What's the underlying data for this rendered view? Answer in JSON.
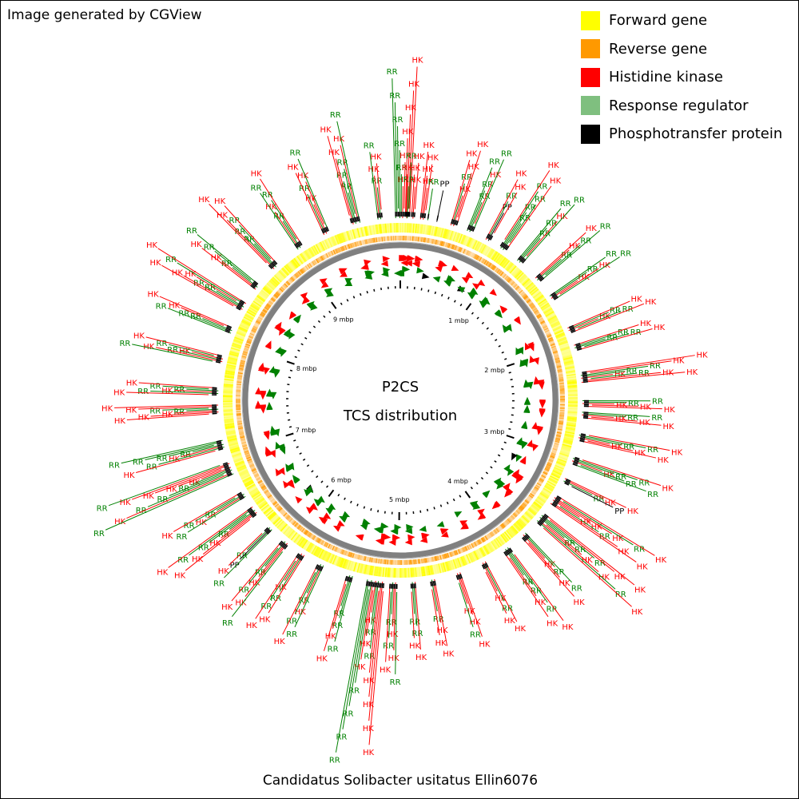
{
  "credit": "Image generated by CGView",
  "legend": [
    {
      "label": "Forward gene",
      "color": "#ffff00"
    },
    {
      "label": "Reverse gene",
      "color": "#ff9900"
    },
    {
      "label": "Histidine kinase",
      "color": "#ff0000"
    },
    {
      "label": "Response regulator",
      "color": "#7fbf7f"
    },
    {
      "label": "Phosphotransfer protein",
      "color": "#000000"
    }
  ],
  "center": {
    "line1": "P2CS",
    "line2": "TCS distribution"
  },
  "scale_labels": [
    "1 mbp",
    "2 mbp",
    "3 mbp",
    "4 mbp",
    "5 mbp",
    "6 mbp",
    "7 mbp",
    "8 mbp",
    "9 mbp"
  ],
  "caption": "Candidatus Solibacter usitatus Ellin6076",
  "feature_codes": {
    "HK": "HK",
    "RR": "RR",
    "PP": "PP"
  },
  "colors": {
    "histidine_kinase": "#ff0000",
    "response_regulator": "#008000",
    "phosphotransfer": "#000000",
    "forward_gene": "#ffff00",
    "reverse_gene": "#ff9900",
    "backbone": "#808080"
  },
  "genome_length_mbp": 9.97,
  "labeled_features": [
    {
      "pos": 0.02,
      "labels": [
        "HK",
        "RR",
        "HK",
        "RR",
        "HK",
        "RR",
        "HK",
        "RR",
        "HK",
        "RR",
        "HK"
      ]
    },
    {
      "pos": 0.06,
      "labels": [
        "RR",
        "HK",
        "RR"
      ]
    },
    {
      "pos": 0.11,
      "labels": [
        "HK",
        "HK",
        "HK"
      ]
    },
    {
      "pos": 0.2,
      "labels": [
        "HK",
        "HK",
        "HK",
        "HK"
      ]
    },
    {
      "pos": 0.24,
      "labels": [
        "RR"
      ]
    },
    {
      "pos": 0.32,
      "labels": [
        "PP"
      ]
    },
    {
      "pos": 0.47,
      "labels": [
        "HK",
        "RR",
        "HK",
        "HK",
        "HK"
      ]
    },
    {
      "pos": 0.62,
      "labels": [
        "RR",
        "RR",
        "HK",
        "RR",
        "RR"
      ]
    },
    {
      "pos": 0.8,
      "labels": [
        "PP",
        "RR",
        "HK",
        "HK"
      ]
    },
    {
      "pos": 0.95,
      "labels": [
        "RR",
        "RR",
        "RR",
        "RR",
        "HK",
        "HK"
      ]
    },
    {
      "pos": 1.13,
      "labels": [
        "RR",
        "RR",
        "HK",
        "RR",
        "RR"
      ]
    },
    {
      "pos": 1.35,
      "labels": [
        "RR",
        "HK",
        "RR",
        "HK",
        "RR"
      ]
    },
    {
      "pos": 1.55,
      "labels": [
        "HK",
        "RR",
        "HK",
        "RR",
        "RR"
      ]
    },
    {
      "pos": 1.87,
      "labels": [
        "HK",
        "RR",
        "RR",
        "HK",
        "HK"
      ]
    },
    {
      "pos": 2.03,
      "labels": [
        "RR",
        "RR",
        "RR",
        "HK",
        "HK"
      ]
    },
    {
      "pos": 2.3,
      "labels": [
        "HK",
        "RR",
        "RR",
        "RR",
        "HK",
        "HK",
        "HK",
        "HK"
      ]
    },
    {
      "pos": 2.52,
      "labels": [
        "HK",
        "RR",
        "HK",
        "RR",
        "HK"
      ]
    },
    {
      "pos": 2.62,
      "labels": [
        "HK",
        "RR",
        "HK",
        "RR",
        "HK"
      ]
    },
    {
      "pos": 2.82,
      "labels": [
        "HK",
        "RR",
        "HK",
        "RR",
        "HK",
        "HK"
      ]
    },
    {
      "pos": 3.03,
      "labels": [
        "HK",
        "RR",
        "RR",
        "RR",
        "RR",
        "HK"
      ]
    },
    {
      "pos": 3.22,
      "labels": [
        "RR",
        "HK",
        "PP",
        "HK"
      ]
    },
    {
      "pos": 3.41,
      "labels": [
        "HK",
        "HK",
        "RR",
        "HK",
        "HK",
        "RR",
        "HK",
        "HK"
      ]
    },
    {
      "pos": 3.6,
      "labels": [
        "RR",
        "RR",
        "HK",
        "RR",
        "HK",
        "HK",
        "RR",
        "HK",
        "HK"
      ]
    },
    {
      "pos": 3.81,
      "labels": [
        "HK",
        "RR",
        "HK",
        "RR",
        "HK"
      ]
    },
    {
      "pos": 4.01,
      "labels": [
        "RR",
        "RR",
        "HK",
        "RR",
        "HK",
        "HK"
      ]
    },
    {
      "pos": 4.24,
      "labels": [
        "HK",
        "RR",
        "HK",
        "HK"
      ]
    },
    {
      "pos": 4.48,
      "labels": [
        "HK",
        "HK",
        "RR",
        "HK"
      ]
    },
    {
      "pos": 4.71,
      "labels": [
        "RR",
        "HK",
        "HK",
        "HK"
      ]
    },
    {
      "pos": 4.88,
      "labels": [
        "RR",
        "RR",
        "HK",
        "HK"
      ]
    },
    {
      "pos": 5.05,
      "labels": [
        "RR",
        "HK",
        "RR",
        "HK",
        "HK",
        "RR"
      ]
    },
    {
      "pos": 5.2,
      "labels": [
        "HK",
        "RR",
        "HK",
        "RR",
        "HK",
        "HK",
        "RR",
        "HK",
        "RR",
        "HK",
        "RR",
        "HK",
        "RR"
      ]
    },
    {
      "pos": 5.43,
      "labels": [
        "RR",
        "RR",
        "HK",
        "RR",
        "HK"
      ]
    },
    {
      "pos": 5.7,
      "labels": [
        "RR",
        "HK",
        "RR",
        "RR",
        "HK"
      ]
    },
    {
      "pos": 5.89,
      "labels": [
        "HK",
        "RR",
        "RR",
        "HK",
        "HK"
      ]
    },
    {
      "pos": 6.07,
      "labels": [
        "RR",
        "HK",
        "RR",
        "HK",
        "HK",
        "RR"
      ]
    },
    {
      "pos": 6.25,
      "labels": [
        "RR",
        "PP",
        "HK",
        "RR"
      ]
    },
    {
      "pos": 6.45,
      "labels": [
        "RR",
        "HK",
        "RR",
        "HK",
        "RR",
        "HK",
        "HK"
      ]
    },
    {
      "pos": 6.62,
      "labels": [
        "RR",
        "HK",
        "RR",
        "RR",
        "HK"
      ]
    },
    {
      "pos": 6.88,
      "labels": [
        "HK",
        "RR",
        "HK",
        "RR",
        "HK",
        "RR",
        "HK",
        "HK",
        "RR",
        "RR"
      ]
    },
    {
      "pos": 7.09,
      "labels": [
        "RR",
        "HK",
        "RR",
        "RR",
        "RR",
        "HK",
        "RR"
      ]
    },
    {
      "pos": 7.4,
      "labels": [
        "RR",
        "HK",
        "RR",
        "HK",
        "HK",
        "HK",
        "HK"
      ]
    },
    {
      "pos": 7.56,
      "labels": [
        "RR",
        "HK",
        "RR",
        "RR",
        "HK",
        "HK"
      ]
    },
    {
      "pos": 7.84,
      "labels": [
        "HK",
        "RR",
        "RR",
        "HK",
        "HK",
        "RR"
      ]
    },
    {
      "pos": 8.1,
      "labels": [
        "RR",
        "RR",
        "HK",
        "RR",
        "HK"
      ]
    },
    {
      "pos": 8.33,
      "labels": [
        "RR",
        "RR",
        "HK",
        "HK",
        "RR",
        "HK",
        "HK"
      ]
    },
    {
      "pos": 8.54,
      "labels": [
        "RR",
        "HK",
        "RR",
        "HK",
        "RR"
      ]
    },
    {
      "pos": 8.78,
      "labels": [
        "RR",
        "RR",
        "RR",
        "HK",
        "HK",
        "HK"
      ]
    },
    {
      "pos": 9.05,
      "labels": [
        "RR",
        "HK",
        "RR",
        "RR",
        "HK"
      ]
    },
    {
      "pos": 9.31,
      "labels": [
        "HK",
        "RR",
        "HK",
        "HK",
        "RR"
      ]
    },
    {
      "pos": 9.58,
      "labels": [
        "RR",
        "RR",
        "RR",
        "HK",
        "HK",
        "HK",
        "RR"
      ]
    },
    {
      "pos": 9.8,
      "labels": [
        "RR",
        "HK",
        "HK",
        "RR"
      ]
    }
  ]
}
